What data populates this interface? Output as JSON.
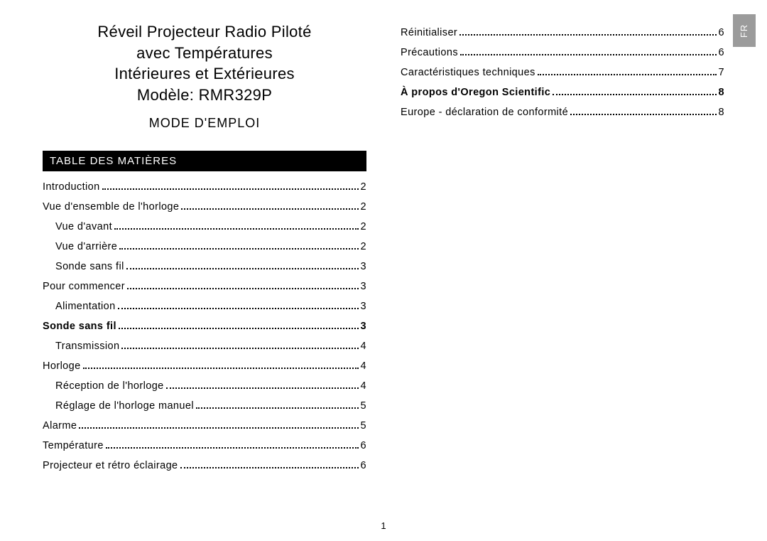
{
  "lang_tab": "FR",
  "title": {
    "line1": "Réveil Projecteur Radio Piloté",
    "line2": "avec Températures",
    "line3": "Intérieures et Extérieures",
    "line4": "Modèle: RMR329P"
  },
  "subtitle": "MODE D'EMPLOI",
  "toc_header": "TABLE DES MATIÈRES",
  "page_number": "1",
  "toc_left": [
    {
      "label": "Introduction",
      "page": "2",
      "indent": 0,
      "bold": false
    },
    {
      "label": "Vue d'ensemble de l'horloge",
      "page": "2",
      "indent": 0,
      "bold": false
    },
    {
      "label": "Vue d'avant",
      "page": "2",
      "indent": 1,
      "bold": false
    },
    {
      "label": "Vue d'arrière",
      "page": "2",
      "indent": 1,
      "bold": false
    },
    {
      "label": "Sonde sans fil",
      "page": "3",
      "indent": 1,
      "bold": false
    },
    {
      "label": "Pour commencer",
      "page": "3",
      "indent": 0,
      "bold": false
    },
    {
      "label": "Alimentation",
      "page": "3",
      "indent": 1,
      "bold": false
    },
    {
      "label": "Sonde sans fil",
      "page": "3",
      "indent": 0,
      "bold": true
    },
    {
      "label": "Transmission",
      "page": "4",
      "indent": 1,
      "bold": false
    },
    {
      "label": "Horloge",
      "page": "4",
      "indent": 0,
      "bold": false
    },
    {
      "label": "Réception de l'horloge",
      "page": "4",
      "indent": 1,
      "bold": false
    },
    {
      "label": "Réglage de l'horloge manuel",
      "page": "5",
      "indent": 1,
      "bold": false
    },
    {
      "label": "Alarme",
      "page": "5",
      "indent": 0,
      "bold": false
    },
    {
      "label": "Température",
      "page": "6",
      "indent": 0,
      "bold": false
    },
    {
      "label": "Projecteur et rétro éclairage",
      "page": "6",
      "indent": 0,
      "bold": false
    }
  ],
  "toc_right": [
    {
      "label": "Réinitialiser",
      "page": "6",
      "indent": 0,
      "bold": false
    },
    {
      "label": "Précautions",
      "page": "6",
      "indent": 0,
      "bold": false
    },
    {
      "label": "Caractéristiques techniques",
      "page": "7",
      "indent": 0,
      "bold": false
    },
    {
      "label": "À propos d'Oregon Scientific",
      "page": "8",
      "indent": 0,
      "bold": true
    },
    {
      "label": "Europe - déclaration de conformité",
      "page": "8",
      "indent": 0,
      "bold": false
    }
  ]
}
